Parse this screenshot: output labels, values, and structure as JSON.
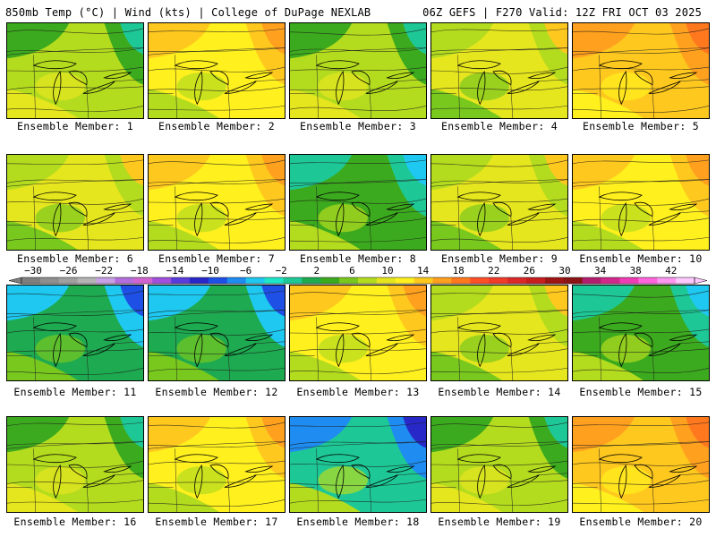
{
  "header": {
    "left_title": "850mb Temp (°C) | Wind (kts) | College of DuPage NEXLAB",
    "right_title": "06Z GEFS | F270 Valid: 12Z FRI OCT 03 2025"
  },
  "colorbar": {
    "ticks": [
      "−30",
      "−26",
      "−22",
      "−18",
      "−14",
      "−10",
      "−6",
      "−2",
      "2",
      "6",
      "10",
      "14",
      "18",
      "22",
      "26",
      "30",
      "34",
      "38",
      "42"
    ],
    "colors": [
      "#7f7f7f",
      "#8f8f8f",
      "#a0a0a0",
      "#b4b4b4",
      "#c8a0e6",
      "#b46edc",
      "#d264d2",
      "#a050dc",
      "#5a3cdc",
      "#2828c8",
      "#1e50e6",
      "#1e8cf0",
      "#1ec8f0",
      "#1ee6c8",
      "#1ec896",
      "#1eaa50",
      "#3caa1e",
      "#78c81e",
      "#b4dc1e",
      "#e6e61e",
      "#fff01e",
      "#ffc81e",
      "#ffa01e",
      "#ff781e",
      "#ff5028",
      "#f03c28",
      "#dc2828",
      "#c81e1e",
      "#a01414",
      "#8c1414",
      "#b41e6e",
      "#d2288c",
      "#f03cb4",
      "#ff64dc",
      "#ff96f0",
      "#ffc8ff"
    ]
  },
  "panels": [
    {
      "label": "Ensemble Member: 1",
      "palette": "green"
    },
    {
      "label": "Ensemble Member: 2",
      "palette": "warm"
    },
    {
      "label": "Ensemble Member: 3",
      "palette": "green"
    },
    {
      "label": "Ensemble Member: 4",
      "palette": "yellow"
    },
    {
      "label": "Ensemble Member: 5",
      "palette": "hot"
    },
    {
      "label": "Ensemble Member: 6",
      "palette": "yellow"
    },
    {
      "label": "Ensemble Member: 7",
      "palette": "warm"
    },
    {
      "label": "Ensemble Member: 8",
      "palette": "cool"
    },
    {
      "label": "Ensemble Member: 9",
      "palette": "yellow"
    },
    {
      "label": "Ensemble Member: 10",
      "palette": "warm"
    },
    {
      "label": "Ensemble Member: 11",
      "palette": "cold"
    },
    {
      "label": "Ensemble Member: 12",
      "palette": "cold"
    },
    {
      "label": "Ensemble Member: 13",
      "palette": "warm"
    },
    {
      "label": "Ensemble Member: 14",
      "palette": "yellow"
    },
    {
      "label": "Ensemble Member: 15",
      "palette": "cool"
    },
    {
      "label": "Ensemble Member: 16",
      "palette": "green"
    },
    {
      "label": "Ensemble Member: 17",
      "palette": "warm"
    },
    {
      "label": "Ensemble Member: 18",
      "palette": "coldest"
    },
    {
      "label": "Ensemble Member: 19",
      "palette": "green"
    },
    {
      "label": "Ensemble Member: 20",
      "palette": "hot"
    }
  ]
}
